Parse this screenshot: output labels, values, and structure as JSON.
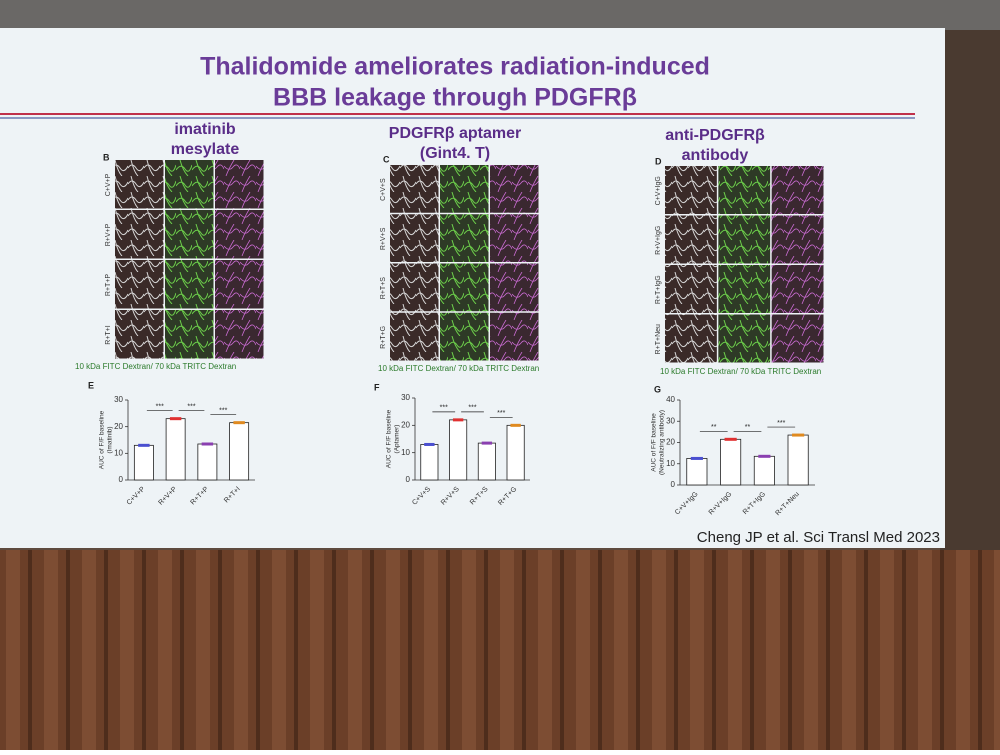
{
  "title": [
    "Thalidomide ameliorates radiation-induced",
    "BBB leakage through PDGFRβ"
  ],
  "columns": [
    {
      "heading": [
        "imatinib",
        "mesylate"
      ],
      "image_letter": "B",
      "row_labels": [
        "C+V+P",
        "R+V+P",
        "R+T+P",
        "R+T+I"
      ],
      "caption": "10 kDa FITC Dextran/ 70 kDa TRITC  Dextran",
      "chart": {
        "letter": "E",
        "type": "bar",
        "ylabel": [
          "AUC of F/F baseline",
          "(Imatinib)"
        ],
        "categories": [
          "C+V+P",
          "R+V+P",
          "R+T+P",
          "R+T+I"
        ],
        "values": [
          13,
          23,
          13.5,
          21.5
        ],
        "colors": [
          "#4a4fd0",
          "#e03030",
          "#8a3fb0",
          "#e08a20"
        ],
        "ylim": [
          0,
          30
        ],
        "yticks": [
          0,
          10,
          20,
          30
        ],
        "significance": [
          "***",
          "***",
          "***"
        ]
      }
    },
    {
      "heading": [
        "PDGFRβ aptamer",
        "(Gint4. T)"
      ],
      "image_letter": "C",
      "row_labels": [
        "C+V+S",
        "R+V+S",
        "R+T+S",
        "R+T+G"
      ],
      "caption": "10 kDa FITC Dextran/ 70 kDa TRITC  Dextran",
      "chart": {
        "letter": "F",
        "type": "bar",
        "ylabel": [
          "AUC of F/F baseline",
          "(Aptamer)"
        ],
        "categories": [
          "C+V+S",
          "R+V+S",
          "R+T+S",
          "R+T+G"
        ],
        "values": [
          13,
          22,
          13.5,
          20
        ],
        "colors": [
          "#4a4fd0",
          "#e03030",
          "#8a3fb0",
          "#e08a20"
        ],
        "ylim": [
          0,
          30
        ],
        "yticks": [
          0,
          10,
          20,
          30
        ],
        "significance": [
          "***",
          "***",
          "***"
        ]
      }
    },
    {
      "heading": [
        "anti-PDGFRβ",
        "antibody"
      ],
      "image_letter": "D",
      "row_labels": [
        "C+V+IgG",
        "R+V+IgG",
        "R+T+IgG",
        "R+T+Neu"
      ],
      "caption": "10 kDa FITC Dextran/ 70 kDa TRITC  Dextran",
      "chart": {
        "letter": "G",
        "type": "bar",
        "ylabel": [
          "AUC of F/F baseline",
          "(Neutralizing antibody)"
        ],
        "categories": [
          "C+V+IgG",
          "R+V+IgG",
          "R+T+IgG",
          "R+T+Neu"
        ],
        "values": [
          12.5,
          21.5,
          13.5,
          23.5
        ],
        "colors": [
          "#4a4fd0",
          "#e03030",
          "#8a3fb0",
          "#e08a20"
        ],
        "ylim": [
          0,
          40
        ],
        "yticks": [
          0,
          10,
          20,
          30,
          40
        ],
        "significance": [
          "**",
          "**",
          "***"
        ]
      }
    }
  ],
  "citation": "Cheng JP et al. Sci Transl Med 2023"
}
